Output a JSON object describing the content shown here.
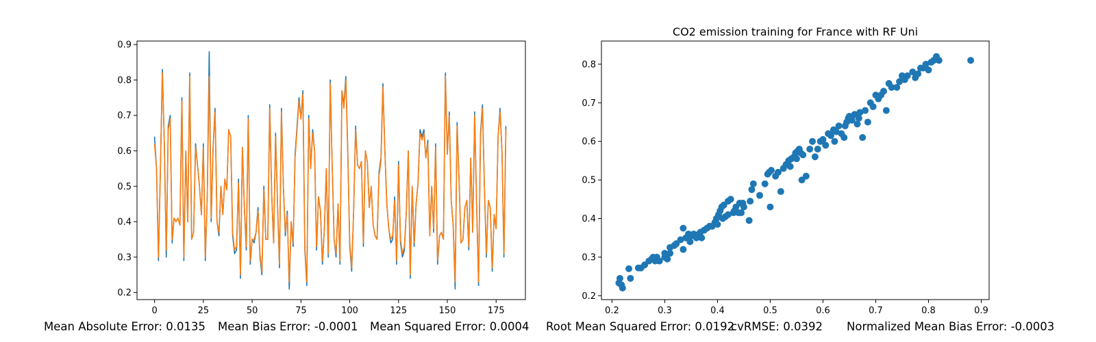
{
  "chart_data": [
    {
      "type": "line",
      "title": "",
      "xlabel": "",
      "ylabel": "",
      "xlim": [
        -9,
        190
      ],
      "ylim": [
        0.18,
        0.91
      ],
      "xticks": [
        0,
        25,
        50,
        75,
        100,
        125,
        150,
        175
      ],
      "yticks": [
        0.2,
        0.3,
        0.4,
        0.5,
        0.6,
        0.7,
        0.8,
        0.9
      ],
      "grid": false,
      "colors": [
        "#1f77b4",
        "#ff7f0e"
      ],
      "series": [
        {
          "color": "#1f77b4",
          "values": [
            0.64,
            0.55,
            0.29,
            0.55,
            0.83,
            0.62,
            0.3,
            0.67,
            0.7,
            0.34,
            0.41,
            0.4,
            0.41,
            0.39,
            0.75,
            0.29,
            0.6,
            0.4,
            0.82,
            0.35,
            0.37,
            0.62,
            0.56,
            0.5,
            0.42,
            0.62,
            0.29,
            0.47,
            0.88,
            0.4,
            0.61,
            0.72,
            0.4,
            0.36,
            0.5,
            0.42,
            0.52,
            0.49,
            0.66,
            0.64,
            0.36,
            0.31,
            0.32,
            0.52,
            0.24,
            0.61,
            0.44,
            0.32,
            0.7,
            0.28,
            0.35,
            0.34,
            0.37,
            0.44,
            0.3,
            0.25,
            0.5,
            0.35,
            0.35,
            0.73,
            0.48,
            0.34,
            0.65,
            0.45,
            0.27,
            0.72,
            0.5,
            0.36,
            0.43,
            0.21,
            0.4,
            0.33,
            0.59,
            0.67,
            0.75,
            0.69,
            0.77,
            0.32,
            0.22,
            0.7,
            0.55,
            0.66,
            0.6,
            0.32,
            0.47,
            0.43,
            0.28,
            0.38,
            0.55,
            0.3,
            0.8,
            0.56,
            0.35,
            0.3,
            0.45,
            0.28,
            0.77,
            0.73,
            0.81,
            0.6,
            0.33,
            0.26,
            0.43,
            0.67,
            0.56,
            0.55,
            0.57,
            0.33,
            0.6,
            0.57,
            0.44,
            0.5,
            0.39,
            0.36,
            0.35,
            0.54,
            0.58,
            0.79,
            0.6,
            0.45,
            0.38,
            0.34,
            0.35,
            0.47,
            0.28,
            0.57,
            0.34,
            0.3,
            0.32,
            0.43,
            0.6,
            0.24,
            0.5,
            0.33,
            0.45,
            0.51,
            0.66,
            0.64,
            0.66,
            0.58,
            0.63,
            0.36,
            0.5,
            0.37,
            0.62,
            0.28,
            0.36,
            0.37,
            0.35,
            0.82,
            0.59,
            0.71,
            0.46,
            0.39,
            0.21,
            0.68,
            0.52,
            0.34,
            0.35,
            0.44,
            0.46,
            0.32,
            0.58,
            0.37,
            0.71,
            0.45,
            0.22,
            0.65,
            0.73,
            0.5,
            0.3,
            0.46,
            0.44,
            0.26,
            0.42,
            0.38,
            0.64,
            0.72,
            0.6,
            0.3,
            0.67
          ]
        },
        {
          "color": "#ff7f0e",
          "values": [
            0.62,
            0.55,
            0.3,
            0.55,
            0.82,
            0.62,
            0.32,
            0.66,
            0.69,
            0.35,
            0.41,
            0.4,
            0.41,
            0.39,
            0.74,
            0.3,
            0.6,
            0.4,
            0.81,
            0.35,
            0.37,
            0.61,
            0.56,
            0.5,
            0.42,
            0.61,
            0.3,
            0.47,
            0.81,
            0.41,
            0.61,
            0.71,
            0.4,
            0.37,
            0.5,
            0.42,
            0.52,
            0.49,
            0.66,
            0.64,
            0.37,
            0.32,
            0.33,
            0.51,
            0.25,
            0.61,
            0.44,
            0.33,
            0.69,
            0.29,
            0.35,
            0.35,
            0.37,
            0.43,
            0.31,
            0.26,
            0.49,
            0.35,
            0.35,
            0.72,
            0.48,
            0.34,
            0.64,
            0.45,
            0.28,
            0.71,
            0.5,
            0.37,
            0.42,
            0.23,
            0.4,
            0.34,
            0.58,
            0.66,
            0.74,
            0.69,
            0.76,
            0.33,
            0.23,
            0.69,
            0.55,
            0.65,
            0.6,
            0.33,
            0.47,
            0.43,
            0.29,
            0.38,
            0.55,
            0.31,
            0.79,
            0.56,
            0.35,
            0.31,
            0.45,
            0.29,
            0.77,
            0.72,
            0.8,
            0.59,
            0.34,
            0.27,
            0.43,
            0.66,
            0.56,
            0.55,
            0.57,
            0.34,
            0.6,
            0.57,
            0.44,
            0.5,
            0.39,
            0.36,
            0.35,
            0.53,
            0.57,
            0.78,
            0.6,
            0.45,
            0.38,
            0.35,
            0.36,
            0.46,
            0.29,
            0.56,
            0.35,
            0.31,
            0.33,
            0.43,
            0.6,
            0.25,
            0.5,
            0.34,
            0.45,
            0.51,
            0.65,
            0.63,
            0.65,
            0.58,
            0.62,
            0.36,
            0.5,
            0.38,
            0.61,
            0.29,
            0.36,
            0.37,
            0.35,
            0.81,
            0.59,
            0.7,
            0.46,
            0.39,
            0.23,
            0.67,
            0.52,
            0.34,
            0.35,
            0.44,
            0.46,
            0.33,
            0.58,
            0.37,
            0.7,
            0.45,
            0.23,
            0.64,
            0.72,
            0.5,
            0.31,
            0.46,
            0.44,
            0.27,
            0.42,
            0.38,
            0.64,
            0.71,
            0.6,
            0.31,
            0.66
          ]
        }
      ]
    },
    {
      "type": "scatter",
      "title": "CO2 emission training for France with RF Uni",
      "xlabel": "",
      "ylabel": "",
      "xlim": [
        0.18,
        0.915
      ],
      "ylim": [
        0.19,
        0.86
      ],
      "xticks": [
        0.2,
        0.3,
        0.4,
        0.5,
        0.6,
        0.7,
        0.8,
        0.9
      ],
      "yticks": [
        0.2,
        0.3,
        0.4,
        0.5,
        0.6,
        0.7,
        0.8
      ],
      "grid": false,
      "colors": [
        "#1f77b4"
      ],
      "points": [
        [
          0.213,
          0.233
        ],
        [
          0.215,
          0.245
        ],
        [
          0.218,
          0.228
        ],
        [
          0.22,
          0.22
        ],
        [
          0.232,
          0.27
        ],
        [
          0.235,
          0.245
        ],
        [
          0.25,
          0.272
        ],
        [
          0.255,
          0.272
        ],
        [
          0.262,
          0.28
        ],
        [
          0.27,
          0.29
        ],
        [
          0.275,
          0.295
        ],
        [
          0.278,
          0.3
        ],
        [
          0.282,
          0.29
        ],
        [
          0.285,
          0.3
        ],
        [
          0.29,
          0.29
        ],
        [
          0.3,
          0.31
        ],
        [
          0.3,
          0.3
        ],
        [
          0.305,
          0.295
        ],
        [
          0.31,
          0.31
        ],
        [
          0.31,
          0.325
        ],
        [
          0.318,
          0.33
        ],
        [
          0.322,
          0.335
        ],
        [
          0.33,
          0.345
        ],
        [
          0.335,
          0.375
        ],
        [
          0.335,
          0.32
        ],
        [
          0.34,
          0.35
        ],
        [
          0.345,
          0.36
        ],
        [
          0.348,
          0.34
        ],
        [
          0.35,
          0.355
        ],
        [
          0.355,
          0.36
        ],
        [
          0.36,
          0.35
        ],
        [
          0.365,
          0.36
        ],
        [
          0.368,
          0.365
        ],
        [
          0.37,
          0.35
        ],
        [
          0.375,
          0.37
        ],
        [
          0.38,
          0.375
        ],
        [
          0.385,
          0.38
        ],
        [
          0.39,
          0.38
        ],
        [
          0.395,
          0.39
        ],
        [
          0.398,
          0.4
        ],
        [
          0.4,
          0.385
        ],
        [
          0.402,
          0.41
        ],
        [
          0.405,
          0.42
        ],
        [
          0.408,
          0.43
        ],
        [
          0.41,
          0.4
        ],
        [
          0.412,
          0.435
        ],
        [
          0.415,
          0.405
        ],
        [
          0.42,
          0.41
        ],
        [
          0.42,
          0.445
        ],
        [
          0.425,
          0.45
        ],
        [
          0.43,
          0.415
        ],
        [
          0.432,
          0.42
        ],
        [
          0.435,
          0.43
        ],
        [
          0.44,
          0.415
        ],
        [
          0.442,
          0.44
        ],
        [
          0.445,
          0.415
        ],
        [
          0.448,
          0.44
        ],
        [
          0.45,
          0.43
        ],
        [
          0.46,
          0.395
        ],
        [
          0.462,
          0.445
        ],
        [
          0.465,
          0.475
        ],
        [
          0.468,
          0.49
        ],
        [
          0.48,
          0.46
        ],
        [
          0.49,
          0.49
        ],
        [
          0.495,
          0.515
        ],
        [
          0.498,
          0.52
        ],
        [
          0.5,
          0.43
        ],
        [
          0.502,
          0.525
        ],
        [
          0.51,
          0.51
        ],
        [
          0.515,
          0.52
        ],
        [
          0.52,
          0.47
        ],
        [
          0.525,
          0.53
        ],
        [
          0.53,
          0.54
        ],
        [
          0.535,
          0.55
        ],
        [
          0.538,
          0.535
        ],
        [
          0.54,
          0.555
        ],
        [
          0.545,
          0.56
        ],
        [
          0.548,
          0.57
        ],
        [
          0.55,
          0.555
        ],
        [
          0.552,
          0.575
        ],
        [
          0.555,
          0.58
        ],
        [
          0.558,
          0.57
        ],
        [
          0.56,
          0.5
        ],
        [
          0.562,
          0.565
        ],
        [
          0.568,
          0.51
        ],
        [
          0.575,
          0.58
        ],
        [
          0.58,
          0.6
        ],
        [
          0.585,
          0.56
        ],
        [
          0.59,
          0.58
        ],
        [
          0.595,
          0.6
        ],
        [
          0.6,
          0.605
        ],
        [
          0.605,
          0.59
        ],
        [
          0.61,
          0.62
        ],
        [
          0.615,
          0.615
        ],
        [
          0.62,
          0.63
        ],
        [
          0.622,
          0.6
        ],
        [
          0.625,
          0.625
        ],
        [
          0.63,
          0.64
        ],
        [
          0.635,
          0.62
        ],
        [
          0.64,
          0.61
        ],
        [
          0.642,
          0.64
        ],
        [
          0.645,
          0.65
        ],
        [
          0.648,
          0.66
        ],
        [
          0.65,
          0.665
        ],
        [
          0.655,
          0.655
        ],
        [
          0.66,
          0.67
        ],
        [
          0.665,
          0.645
        ],
        [
          0.668,
          0.66
        ],
        [
          0.67,
          0.675
        ],
        [
          0.675,
          0.61
        ],
        [
          0.68,
          0.68
        ],
        [
          0.685,
          0.65
        ],
        [
          0.69,
          0.7
        ],
        [
          0.695,
          0.69
        ],
        [
          0.7,
          0.72
        ],
        [
          0.705,
          0.71
        ],
        [
          0.71,
          0.72
        ],
        [
          0.715,
          0.73
        ],
        [
          0.72,
          0.68
        ],
        [
          0.725,
          0.75
        ],
        [
          0.73,
          0.74
        ],
        [
          0.74,
          0.74
        ],
        [
          0.745,
          0.755
        ],
        [
          0.75,
          0.77
        ],
        [
          0.755,
          0.76
        ],
        [
          0.76,
          0.77
        ],
        [
          0.77,
          0.78
        ],
        [
          0.775,
          0.765
        ],
        [
          0.78,
          0.775
        ],
        [
          0.785,
          0.79
        ],
        [
          0.79,
          0.79
        ],
        [
          0.795,
          0.8
        ],
        [
          0.8,
          0.785
        ],
        [
          0.805,
          0.805
        ],
        [
          0.81,
          0.81
        ],
        [
          0.815,
          0.82
        ],
        [
          0.82,
          0.81
        ],
        [
          0.88,
          0.81
        ]
      ]
    }
  ],
  "metrics": {
    "mae": "Mean Absolute Error: 0.0135",
    "mbe": "Mean Bias Error: -0.0001",
    "mse": "Mean Squared Error: 0.0004",
    "rmse": "Root Mean Squared Error: 0.0192",
    "cvrmse": "cvRMSE: 0.0392",
    "nmbe": "Normalized Mean Bias Error: -0.0003"
  }
}
